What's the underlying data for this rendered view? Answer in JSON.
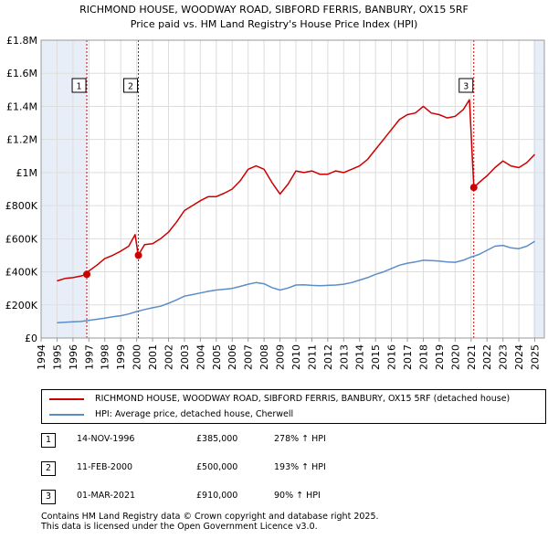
{
  "chart_data": {
    "type": "line",
    "title": "RICHMOND HOUSE, WOODWAY ROAD, SIBFORD FERRIS, BANBURY, OX15 5RF",
    "subtitle": "Price paid vs. HM Land Registry's House Price Index (HPI)",
    "x_range": [
      1994,
      2025.6
    ],
    "ylim": [
      0,
      1800000
    ],
    "y_ticks": [
      {
        "value": 0,
        "label": "£0"
      },
      {
        "value": 200000,
        "label": "£200K"
      },
      {
        "value": 400000,
        "label": "£400K"
      },
      {
        "value": 600000,
        "label": "£600K"
      },
      {
        "value": 800000,
        "label": "£800K"
      },
      {
        "value": 1000000,
        "label": "£1M"
      },
      {
        "value": 1200000,
        "label": "£1.2M"
      },
      {
        "value": 1400000,
        "label": "£1.4M"
      },
      {
        "value": 1600000,
        "label": "£1.6M"
      },
      {
        "value": 1800000,
        "label": "£1.8M"
      }
    ],
    "x_ticks": [
      "1994",
      "1995",
      "1996",
      "1997",
      "1998",
      "1999",
      "2000",
      "2001",
      "2002",
      "2003",
      "2004",
      "2005",
      "2006",
      "2007",
      "2008",
      "2009",
      "2010",
      "2011",
      "2012",
      "2013",
      "2014",
      "2015",
      "2016",
      "2017",
      "2018",
      "2019",
      "2020",
      "2021",
      "2022",
      "2023",
      "2024",
      "2025"
    ],
    "grid": true,
    "series": [
      {
        "name": "RICHMOND HOUSE, WOODWAY ROAD, SIBFORD FERRIS, BANBURY, OX15 5RF (detached house)",
        "color": "#cc0000",
        "points": [
          [
            1995.0,
            345000
          ],
          [
            1995.5,
            360000
          ],
          [
            1996.0,
            365000
          ],
          [
            1996.5,
            375000
          ],
          [
            1996.87,
            385000
          ],
          [
            1997.0,
            405000
          ],
          [
            1997.5,
            440000
          ],
          [
            1998.0,
            480000
          ],
          [
            1998.5,
            500000
          ],
          [
            1999.0,
            525000
          ],
          [
            1999.5,
            555000
          ],
          [
            1999.9,
            625000
          ],
          [
            2000.1,
            500000
          ],
          [
            2000.5,
            565000
          ],
          [
            2001.0,
            570000
          ],
          [
            2001.5,
            600000
          ],
          [
            2002.0,
            640000
          ],
          [
            2002.5,
            700000
          ],
          [
            2003.0,
            770000
          ],
          [
            2003.5,
            800000
          ],
          [
            2004.0,
            830000
          ],
          [
            2004.5,
            855000
          ],
          [
            2005.0,
            855000
          ],
          [
            2005.5,
            875000
          ],
          [
            2006.0,
            900000
          ],
          [
            2006.5,
            950000
          ],
          [
            2007.0,
            1020000
          ],
          [
            2007.5,
            1040000
          ],
          [
            2008.0,
            1020000
          ],
          [
            2008.5,
            940000
          ],
          [
            2009.0,
            870000
          ],
          [
            2009.5,
            930000
          ],
          [
            2010.0,
            1010000
          ],
          [
            2010.5,
            1000000
          ],
          [
            2011.0,
            1010000
          ],
          [
            2011.5,
            990000
          ],
          [
            2012.0,
            990000
          ],
          [
            2012.5,
            1010000
          ],
          [
            2013.0,
            1000000
          ],
          [
            2013.5,
            1020000
          ],
          [
            2014.0,
            1040000
          ],
          [
            2014.5,
            1080000
          ],
          [
            2015.0,
            1140000
          ],
          [
            2015.5,
            1200000
          ],
          [
            2016.0,
            1260000
          ],
          [
            2016.5,
            1320000
          ],
          [
            2017.0,
            1350000
          ],
          [
            2017.5,
            1360000
          ],
          [
            2018.0,
            1400000
          ],
          [
            2018.5,
            1360000
          ],
          [
            2019.0,
            1350000
          ],
          [
            2019.5,
            1330000
          ],
          [
            2020.0,
            1340000
          ],
          [
            2020.5,
            1380000
          ],
          [
            2020.9,
            1440000
          ],
          [
            2021.17,
            910000
          ],
          [
            2021.5,
            940000
          ],
          [
            2022.0,
            980000
          ],
          [
            2022.5,
            1030000
          ],
          [
            2023.0,
            1070000
          ],
          [
            2023.5,
            1040000
          ],
          [
            2024.0,
            1030000
          ],
          [
            2024.5,
            1060000
          ],
          [
            2025.0,
            1110000
          ]
        ]
      },
      {
        "name": "HPI: Average price, detached house, Cherwell",
        "color": "#5b8ec9",
        "points": [
          [
            1995.0,
            93000
          ],
          [
            1995.5,
            95000
          ],
          [
            1996.0,
            98000
          ],
          [
            1996.5,
            100000
          ],
          [
            1997.0,
            107000
          ],
          [
            1997.5,
            113000
          ],
          [
            1998.0,
            120000
          ],
          [
            1998.5,
            128000
          ],
          [
            1999.0,
            135000
          ],
          [
            1999.5,
            145000
          ],
          [
            2000.0,
            160000
          ],
          [
            2000.5,
            172000
          ],
          [
            2001.0,
            183000
          ],
          [
            2001.5,
            192000
          ],
          [
            2002.0,
            210000
          ],
          [
            2002.5,
            230000
          ],
          [
            2003.0,
            253000
          ],
          [
            2003.5,
            262000
          ],
          [
            2004.0,
            272000
          ],
          [
            2004.5,
            282000
          ],
          [
            2005.0,
            290000
          ],
          [
            2005.5,
            295000
          ],
          [
            2006.0,
            300000
          ],
          [
            2006.5,
            312000
          ],
          [
            2007.0,
            325000
          ],
          [
            2007.5,
            335000
          ],
          [
            2008.0,
            328000
          ],
          [
            2008.5,
            305000
          ],
          [
            2009.0,
            290000
          ],
          [
            2009.5,
            302000
          ],
          [
            2010.0,
            320000
          ],
          [
            2010.5,
            322000
          ],
          [
            2011.0,
            318000
          ],
          [
            2011.5,
            316000
          ],
          [
            2012.0,
            318000
          ],
          [
            2012.5,
            320000
          ],
          [
            2013.0,
            325000
          ],
          [
            2013.5,
            335000
          ],
          [
            2014.0,
            350000
          ],
          [
            2014.5,
            365000
          ],
          [
            2015.0,
            385000
          ],
          [
            2015.5,
            400000
          ],
          [
            2016.0,
            420000
          ],
          [
            2016.5,
            440000
          ],
          [
            2017.0,
            452000
          ],
          [
            2017.5,
            460000
          ],
          [
            2018.0,
            470000
          ],
          [
            2018.5,
            468000
          ],
          [
            2019.0,
            465000
          ],
          [
            2019.5,
            460000
          ],
          [
            2020.0,
            458000
          ],
          [
            2020.5,
            470000
          ],
          [
            2021.0,
            490000
          ],
          [
            2021.5,
            505000
          ],
          [
            2022.0,
            530000
          ],
          [
            2022.5,
            555000
          ],
          [
            2023.0,
            560000
          ],
          [
            2023.5,
            545000
          ],
          [
            2024.0,
            540000
          ],
          [
            2024.5,
            555000
          ],
          [
            2025.0,
            585000
          ]
        ]
      }
    ],
    "sales": [
      {
        "marker": "1",
        "x": 1996.87,
        "price": 385000
      },
      {
        "marker": "2",
        "x": 2000.11,
        "price": 500000
      },
      {
        "marker": "3",
        "x": 2021.17,
        "price": 910000
      }
    ],
    "shaded_regions": [
      [
        1994.0,
        1996.87
      ],
      [
        2024.9,
        2025.6
      ]
    ],
    "colors": {
      "grid": "#dddddd",
      "shade": "#e8eef8",
      "plot_bg": "#ffffff"
    }
  },
  "legend": {
    "property_label": "RICHMOND HOUSE, WOODWAY ROAD, SIBFORD FERRIS, BANBURY, OX15 5RF (detached house)",
    "hpi_label": "HPI: Average price, detached house, Cherwell"
  },
  "sales_table": [
    {
      "num": "1",
      "date": "14-NOV-1996",
      "price": "£385,000",
      "hpi": "278% ↑ HPI"
    },
    {
      "num": "2",
      "date": "11-FEB-2000",
      "price": "£500,000",
      "hpi": "193% ↑ HPI"
    },
    {
      "num": "3",
      "date": "01-MAR-2021",
      "price": "£910,000",
      "hpi": "90% ↑ HPI"
    }
  ],
  "footer": {
    "line1": "Contains HM Land Registry data © Crown copyright and database right 2025.",
    "line2": "This data is licensed under the Open Government Licence v3.0."
  }
}
